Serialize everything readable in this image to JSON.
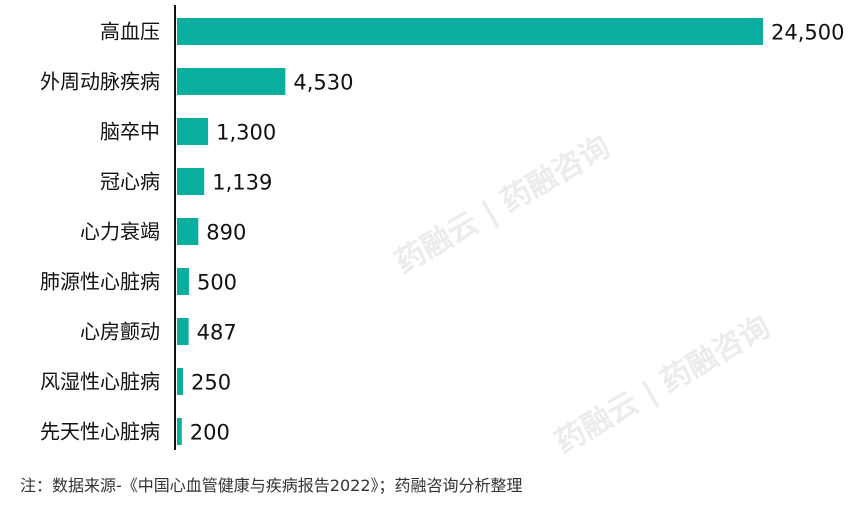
{
  "chart_data": {
    "type": "bar",
    "orientation": "horizontal",
    "categories": [
      "高血压",
      "外周动脉疾病",
      "脑卒中",
      "冠心病",
      "心力衰竭",
      "肺源性心脏病",
      "心房颤动",
      "风湿性心脏病",
      "先天性心脏病"
    ],
    "values": [
      24500,
      4530,
      1300,
      1139,
      890,
      500,
      487,
      250,
      200
    ],
    "value_labels": [
      "24,500",
      "4,530",
      "1,300",
      "1,139",
      "890",
      "500",
      "487",
      "250",
      "200"
    ],
    "xlim": [
      0,
      24500
    ],
    "grid": false,
    "color": "#0AAE9E"
  },
  "footnote": "注：数据来源-《中国心血管健康与疾病报告2022》；药融咨询分析整理",
  "watermark": "药融云 | 药融咨询"
}
